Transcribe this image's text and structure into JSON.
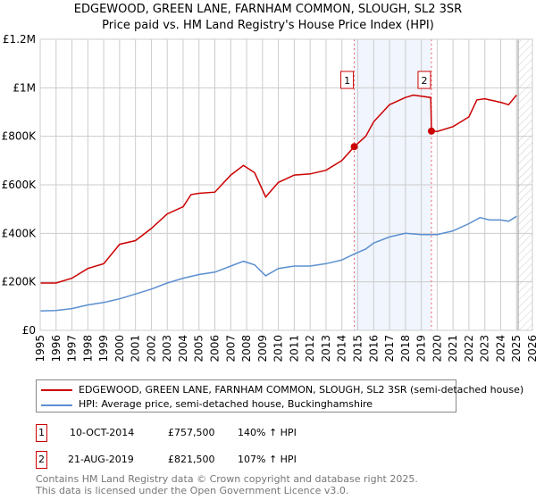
{
  "chart_data": {
    "type": "line",
    "title": "EDGEWOOD, GREEN LANE, FARNHAM COMMON, SLOUGH, SL2 3SR",
    "subtitle": "Price paid vs. HM Land Registry's House Price Index (HPI)",
    "xlim": [
      1995,
      2026
    ],
    "ylim": [
      0,
      1200000
    ],
    "x_ticks": [
      "1995",
      "1996",
      "1997",
      "1998",
      "1999",
      "2000",
      "2001",
      "2002",
      "2003",
      "2004",
      "2005",
      "2006",
      "2007",
      "2008",
      "2009",
      "2010",
      "2011",
      "2012",
      "2013",
      "2014",
      "2015",
      "2016",
      "2017",
      "2018",
      "2019",
      "2020",
      "2021",
      "2022",
      "2023",
      "2024",
      "2025",
      "2026"
    ],
    "y_ticks": [
      {
        "v": 0,
        "label": "£0"
      },
      {
        "v": 200000,
        "label": "£200K"
      },
      {
        "v": 400000,
        "label": "£400K"
      },
      {
        "v": 600000,
        "label": "£600K"
      },
      {
        "v": 800000,
        "label": "£800K"
      },
      {
        "v": 1000000,
        "label": "£1M"
      },
      {
        "v": 1200000,
        "label": "£1.2M"
      }
    ],
    "grid": true,
    "shaded_range": [
      2014.78,
      19.64
    ],
    "forecast_from": 2025.1,
    "series": [
      {
        "name": "EDGEWOOD, GREEN LANE, FARNHAM COMMON, SLOUGH, SL2 3SR (semi-detached house)",
        "color": "#cc0000",
        "x": [
          1995,
          1996,
          1997,
          1998,
          1999,
          2000,
          2001,
          2002,
          2003,
          2004,
          2004.5,
          2005,
          2006,
          2007,
          2007.8,
          2008.5,
          2009.2,
          2010,
          2011,
          2012,
          2013,
          2014,
          2014.78,
          2015.5,
          2016,
          2017,
          2018,
          2018.5,
          2019.6,
          2019.64,
          2020,
          2021,
          2021.5,
          2022,
          2022.5,
          2023,
          2024,
          2024.5,
          2025
        ],
        "y": [
          195000,
          195000,
          215000,
          255000,
          275000,
          355000,
          370000,
          420000,
          480000,
          510000,
          560000,
          565000,
          570000,
          640000,
          680000,
          650000,
          550000,
          610000,
          640000,
          645000,
          660000,
          700000,
          757500,
          800000,
          860000,
          930000,
          960000,
          970000,
          960000,
          821500,
          820000,
          840000,
          860000,
          880000,
          950000,
          955000,
          940000,
          930000,
          970000
        ]
      },
      {
        "name": "HPI: Average price, semi-detached house, Buckinghamshire",
        "color": "#5b8fd0",
        "x": [
          1995,
          1996,
          1997,
          1998,
          1999,
          2000,
          2001,
          2002,
          2003,
          2004,
          2005,
          2006,
          2007,
          2007.8,
          2008.5,
          2009.2,
          2010,
          2011,
          2012,
          2013,
          2014,
          2014.78,
          2015.5,
          2016,
          2017,
          2018,
          2019,
          2020,
          2021,
          2022,
          2022.7,
          2023.3,
          2024,
          2024.5,
          2025
        ],
        "y": [
          80000,
          82000,
          90000,
          105000,
          115000,
          130000,
          150000,
          170000,
          195000,
          215000,
          230000,
          240000,
          265000,
          285000,
          270000,
          225000,
          255000,
          265000,
          265000,
          275000,
          290000,
          315000,
          335000,
          360000,
          385000,
          400000,
          395000,
          395000,
          410000,
          440000,
          465000,
          455000,
          455000,
          450000,
          470000
        ]
      }
    ],
    "sales": [
      {
        "id": "1",
        "x": 2014.78,
        "y": 757500,
        "date": "10-OCT-2014",
        "price": "£757,500",
        "hpi": "140% ↑ HPI"
      },
      {
        "id": "2",
        "x": 2019.64,
        "y": 821500,
        "date": "21-AUG-2019",
        "price": "£821,500",
        "hpi": "107% ↑ HPI"
      }
    ]
  },
  "footer": {
    "line1": "Contains HM Land Registry data © Crown copyright and database right 2025.",
    "line2": "This data is licensed under the Open Government Licence v3.0."
  }
}
